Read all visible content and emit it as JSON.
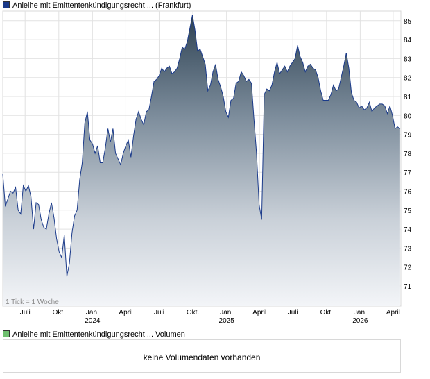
{
  "legend": {
    "price_label": "Anleihe mit Emittentenkündigungsrecht ... (Frankfurt)",
    "price_color": "#1a3a8a",
    "volume_label": "Anleihe mit Emittentenkündigungsrecht ... Volumen",
    "volume_color": "#6fbf6f"
  },
  "chart_note": "1 Tick = 1 Woche",
  "volume": {
    "message": "keine Volumendaten vorhanden"
  },
  "chart_data": {
    "type": "area",
    "title": "",
    "xlabel": "",
    "ylabel": "",
    "x_range": [
      "2023-05-01",
      "2026-04-22"
    ],
    "ylim": [
      70,
      86
    ],
    "y_ticks": [
      71,
      72,
      73,
      74,
      75,
      76,
      77,
      78,
      79,
      80,
      81,
      82,
      83,
      84,
      85
    ],
    "x_ticks": [
      {
        "date": "2023-07-01",
        "label": "Juli",
        "year": ""
      },
      {
        "date": "2023-10-01",
        "label": "Okt.",
        "year": ""
      },
      {
        "date": "2024-01-01",
        "label": "Jan.",
        "year": "2024"
      },
      {
        "date": "2024-04-01",
        "label": "April",
        "year": ""
      },
      {
        "date": "2024-07-01",
        "label": "Juli",
        "year": ""
      },
      {
        "date": "2024-10-01",
        "label": "Okt.",
        "year": ""
      },
      {
        "date": "2025-01-01",
        "label": "Jan.",
        "year": "2025"
      },
      {
        "date": "2025-04-01",
        "label": "April",
        "year": ""
      },
      {
        "date": "2025-07-01",
        "label": "Juli",
        "year": ""
      },
      {
        "date": "2025-10-01",
        "label": "Okt.",
        "year": ""
      },
      {
        "date": "2026-01-01",
        "label": "Jan.",
        "year": "2026"
      },
      {
        "date": "2026-04-01",
        "label": "April",
        "year": ""
      }
    ],
    "grid": true,
    "legend_position": "top-left",
    "series": [
      {
        "name": "Anleihe mit Emittentenkündigungsrecht ... (Frankfurt)",
        "x": [
          "2023-05-01",
          "2023-05-08",
          "2023-05-15",
          "2023-05-22",
          "2023-05-29",
          "2023-06-05",
          "2023-06-12",
          "2023-06-19",
          "2023-06-26",
          "2023-07-03",
          "2023-07-10",
          "2023-07-17",
          "2023-07-24",
          "2023-07-31",
          "2023-08-07",
          "2023-08-14",
          "2023-08-21",
          "2023-08-28",
          "2023-09-04",
          "2023-09-11",
          "2023-09-18",
          "2023-09-25",
          "2023-10-02",
          "2023-10-09",
          "2023-10-16",
          "2023-10-23",
          "2023-10-30",
          "2023-11-06",
          "2023-11-13",
          "2023-11-20",
          "2023-11-27",
          "2023-12-04",
          "2023-12-11",
          "2023-12-18",
          "2023-12-25",
          "2024-01-01",
          "2024-01-08",
          "2024-01-15",
          "2024-01-22",
          "2024-01-29",
          "2024-02-05",
          "2024-02-12",
          "2024-02-19",
          "2024-02-26",
          "2024-03-04",
          "2024-03-11",
          "2024-03-18",
          "2024-03-25",
          "2024-04-01",
          "2024-04-08",
          "2024-04-15",
          "2024-04-22",
          "2024-04-29",
          "2024-05-06",
          "2024-05-13",
          "2024-05-20",
          "2024-05-27",
          "2024-06-03",
          "2024-06-10",
          "2024-06-17",
          "2024-06-24",
          "2024-07-01",
          "2024-07-08",
          "2024-07-15",
          "2024-07-22",
          "2024-07-29",
          "2024-08-05",
          "2024-08-12",
          "2024-08-19",
          "2024-08-26",
          "2024-09-02",
          "2024-09-09",
          "2024-09-16",
          "2024-09-23",
          "2024-09-30",
          "2024-10-07",
          "2024-10-14",
          "2024-10-21",
          "2024-10-28",
          "2024-11-04",
          "2024-11-11",
          "2024-11-18",
          "2024-11-25",
          "2024-12-02",
          "2024-12-09",
          "2024-12-16",
          "2024-12-23",
          "2024-12-30",
          "2025-01-06",
          "2025-01-13",
          "2025-01-20",
          "2025-01-27",
          "2025-02-03",
          "2025-02-10",
          "2025-02-17",
          "2025-02-24",
          "2025-03-03",
          "2025-03-10",
          "2025-03-17",
          "2025-03-24",
          "2025-03-31",
          "2025-04-07",
          "2025-04-14",
          "2025-04-21",
          "2025-04-28",
          "2025-05-05",
          "2025-05-12",
          "2025-05-19",
          "2025-05-26",
          "2025-06-02",
          "2025-06-09",
          "2025-06-16",
          "2025-06-23",
          "2025-06-30",
          "2025-07-07",
          "2025-07-14",
          "2025-07-21",
          "2025-07-28",
          "2025-08-04",
          "2025-08-11",
          "2025-08-18",
          "2025-08-25",
          "2025-09-01",
          "2025-09-08",
          "2025-09-15",
          "2025-09-22",
          "2025-09-29",
          "2025-10-06",
          "2025-10-13",
          "2025-10-20",
          "2025-10-27",
          "2025-11-03",
          "2025-11-10",
          "2025-11-17",
          "2025-11-24",
          "2025-12-01",
          "2025-12-08",
          "2025-12-15",
          "2025-12-22",
          "2025-12-29",
          "2026-01-05",
          "2026-01-12",
          "2026-01-19",
          "2026-01-26",
          "2026-02-02",
          "2026-02-09",
          "2026-02-16",
          "2026-02-23",
          "2026-03-02",
          "2026-03-09",
          "2026-03-16",
          "2026-03-23",
          "2026-03-30",
          "2026-04-06",
          "2026-04-13",
          "2026-04-20"
        ],
        "values": [
          76.9,
          75.2,
          75.6,
          76.0,
          75.9,
          76.2,
          75.0,
          74.8,
          76.3,
          76.0,
          76.3,
          75.7,
          74.0,
          75.4,
          75.3,
          74.5,
          74.1,
          74.0,
          74.8,
          75.4,
          74.6,
          73.5,
          72.8,
          72.5,
          73.7,
          71.5,
          72.2,
          73.8,
          74.7,
          75.0,
          76.6,
          77.5,
          79.6,
          80.2,
          78.7,
          78.5,
          78.0,
          78.4,
          77.5,
          77.5,
          78.3,
          79.3,
          78.6,
          79.3,
          78.0,
          77.7,
          77.4,
          78.0,
          78.4,
          78.7,
          77.8,
          78.9,
          79.8,
          80.2,
          79.8,
          79.5,
          80.2,
          80.3,
          81.0,
          81.8,
          81.9,
          82.1,
          82.5,
          82.3,
          82.5,
          82.6,
          82.2,
          82.3,
          82.5,
          83.0,
          83.6,
          83.5,
          83.9,
          84.6,
          85.3,
          84.5,
          83.4,
          83.5,
          83.1,
          82.7,
          81.3,
          81.6,
          82.3,
          82.7,
          81.9,
          81.5,
          81.0,
          80.2,
          79.9,
          80.8,
          80.9,
          81.7,
          81.8,
          82.3,
          82.1,
          81.8,
          81.9,
          81.7,
          79.8,
          78.0,
          75.3,
          74.5,
          81.1,
          81.4,
          81.3,
          81.6,
          82.3,
          82.8,
          82.2,
          82.4,
          82.6,
          82.3,
          82.6,
          82.8,
          83.0,
          83.7,
          83.1,
          82.8,
          82.3,
          82.6,
          82.7,
          82.5,
          82.4,
          82.0,
          81.3,
          80.8,
          80.8,
          80.8,
          81.1,
          81.6,
          81.3,
          81.4,
          82.0,
          82.6,
          83.3,
          82.5,
          81.2,
          80.8,
          80.7,
          80.4,
          80.5,
          80.3,
          80.4,
          80.7,
          80.2,
          80.4,
          80.5,
          80.6,
          80.6,
          80.5,
          80.1,
          80.5,
          80.0,
          79.3,
          79.4,
          79.3
        ]
      }
    ]
  }
}
